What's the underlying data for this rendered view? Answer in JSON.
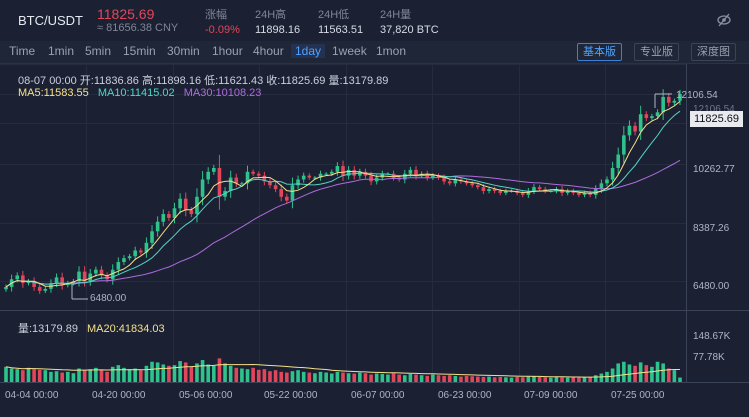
{
  "header": {
    "pair": "BTC/USDT",
    "last_price": "11825.69",
    "cny_price": "≈ 81656.38 CNY",
    "change_label": "涨幅",
    "change_value": "-0.09%",
    "high_label": "24H高",
    "high_value": "11898.16",
    "low_label": "24H低",
    "low_value": "11563.51",
    "vol_label": "24H量",
    "vol_value": "37,820 BTC",
    "hide_icon": "eye-slash-icon"
  },
  "timeframes": [
    "Time",
    "1min",
    "5min",
    "15min",
    "30min",
    "1hour",
    "4hour",
    "1day",
    "1week",
    "1mon"
  ],
  "active_timeframe": "1day",
  "views": [
    "基本版",
    "专业版",
    "深度图"
  ],
  "active_view": "基本版",
  "info": {
    "ohlc": "08-07 00:00  开:11836.86 高:11898.16 低:11621.43 收:11825.69 量:13179.89",
    "ma5": "MA5:11583.55",
    "ma10": "MA10:11415.02",
    "ma30": "MA30:10108.23",
    "volume": "量:13179.89",
    "ma20": "MA20:41834.03"
  },
  "colors": {
    "up": "#2ec28c",
    "down": "#e2465b",
    "ma5": "#f5e08a",
    "ma10": "#4fd6c8",
    "ma30": "#b06be0",
    "vol_ma": "#f5e08a",
    "accent": "#4ea3ff"
  },
  "price_axis": [
    "12106.54",
    "10262.77",
    "8387.26",
    "6480.00"
  ],
  "current_price_tag": "11825.69",
  "max_marker": "12106.54",
  "min_marker": "6480.00",
  "volume_axis": [
    "148.67K",
    "77.78K"
  ],
  "x_axis": [
    "04-04 00:00",
    "04-20 00:00",
    "05-06 00:00",
    "05-22 00:00",
    "06-07 00:00",
    "06-23 00:00",
    "07-09 00:00",
    "07-25 00:00"
  ],
  "chart_data": {
    "type": "candlestick",
    "ylim": [
      6200,
      12400
    ],
    "volume_ylim": [
      0,
      160000
    ],
    "close": [
      6800,
      7000,
      7100,
      6900,
      6950,
      6800,
      6700,
      6750,
      6900,
      7050,
      6850,
      6900,
      6950,
      7200,
      6950,
      7150,
      7250,
      7100,
      7000,
      7250,
      7450,
      7550,
      7600,
      7750,
      7700,
      7950,
      8250,
      8500,
      8700,
      8600,
      8850,
      9100,
      8800,
      8700,
      9150,
      9600,
      9800,
      9900,
      9150,
      9300,
      9650,
      9500,
      9500,
      9800,
      9750,
      9700,
      9550,
      9450,
      9350,
      9150,
      9050,
      9450,
      9600,
      9700,
      9650,
      9650,
      9750,
      9750,
      9800,
      9950,
      9700,
      9850,
      9700,
      9800,
      9700,
      9550,
      9650,
      9750,
      9750,
      9650,
      9600,
      9750,
      9850,
      9700,
      9750,
      9650,
      9700,
      9650,
      9550,
      9500,
      9600,
      9550,
      9500,
      9450,
      9400,
      9300,
      9350,
      9300,
      9250,
      9300,
      9300,
      9250,
      9200,
      9300,
      9400,
      9350,
      9300,
      9300,
      9350,
      9250,
      9300,
      9250,
      9200,
      9250,
      9200,
      9350,
      9500,
      9600,
      9900,
      10250,
      10750,
      11000,
      10850,
      11300,
      11200,
      11250,
      11350,
      11750,
      11600,
      11650,
      11825.69
    ],
    "volume": [
      45000,
      40000,
      38000,
      35000,
      42000,
      38000,
      36000,
      35000,
      30000,
      32000,
      28000,
      30000,
      26000,
      40000,
      35000,
      38000,
      42000,
      35000,
      30000,
      45000,
      50000,
      42000,
      38000,
      40000,
      35000,
      48000,
      60000,
      58000,
      52000,
      48000,
      50000,
      62000,
      58000,
      45000,
      55000,
      65000,
      52000,
      48000,
      70000,
      55000,
      48000,
      42000,
      40000,
      38000,
      42000,
      36000,
      38000,
      32000,
      35000,
      30000,
      28000,
      32000,
      35000,
      30000,
      28000,
      26000,
      30000,
      28000,
      25000,
      30000,
      28000,
      26000,
      25000,
      28000,
      26000,
      22000,
      25000,
      24000,
      22000,
      26000,
      22000,
      20000,
      24000,
      22000,
      20000,
      18000,
      22000,
      20000,
      18000,
      20000,
      18000,
      16000,
      18000,
      17000,
      16000,
      15000,
      16000,
      14000,
      15000,
      14000,
      13000,
      15000,
      14000,
      16000,
      18000,
      15000,
      14000,
      13000,
      15000,
      14000,
      13000,
      14000,
      13000,
      14000,
      15000,
      20000,
      25000,
      30000,
      40000,
      55000,
      60000,
      52000,
      48000,
      58000,
      50000,
      45000,
      60000,
      55000,
      40000,
      35000,
      13179.89
    ],
    "ma5_label": "MA5",
    "ma10_label": "MA10",
    "ma30_label": "MA30",
    "vol_ma_label": "MA20"
  }
}
